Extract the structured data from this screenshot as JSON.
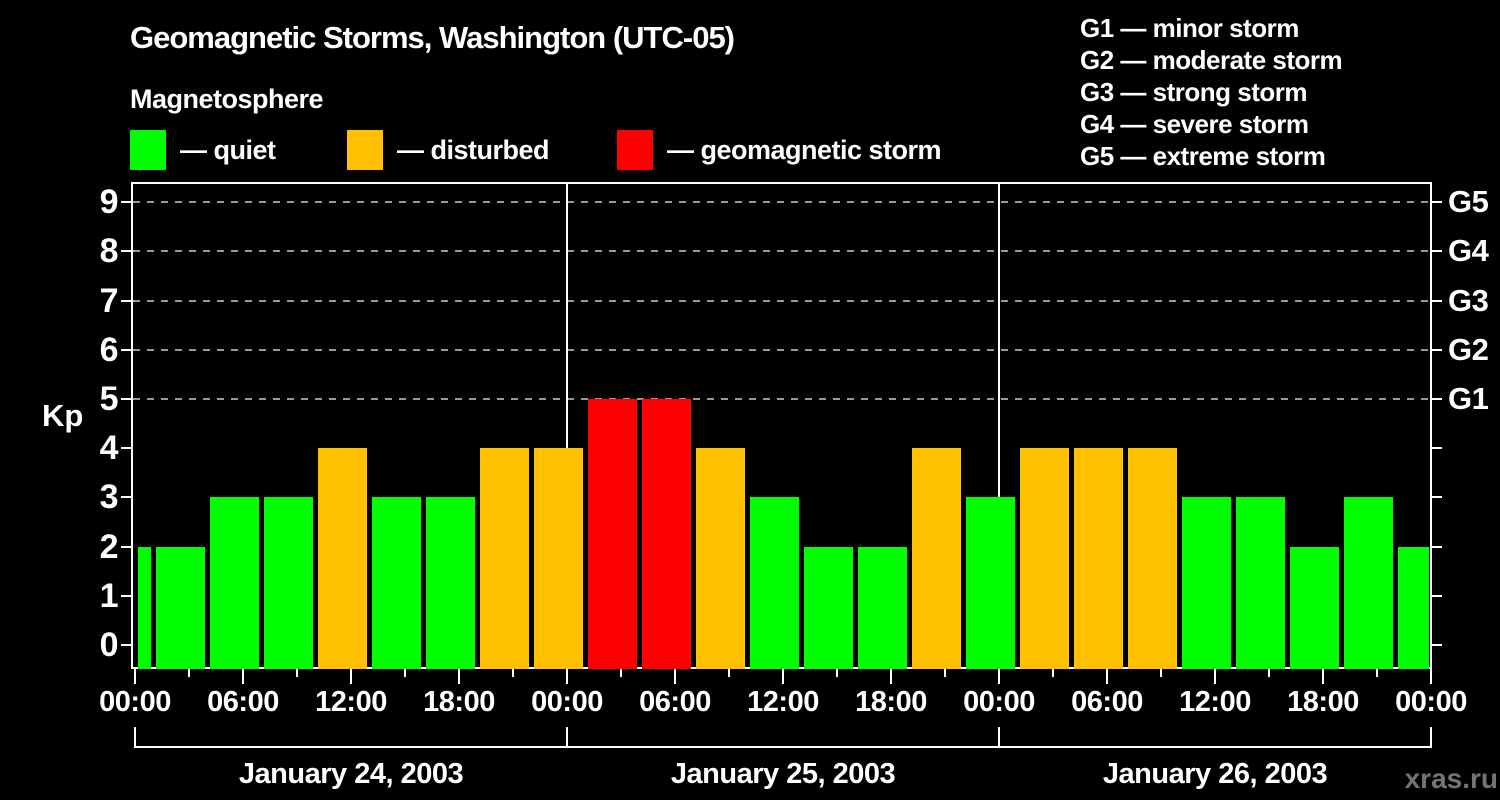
{
  "title": "Geomagnetic Storms, Washington (UTC-05)",
  "subtitle": "Magnetosphere",
  "status_legend": [
    {
      "key": "quiet",
      "label": "— quiet",
      "color": "#00ff00"
    },
    {
      "key": "disturbed",
      "label": "— disturbed",
      "color": "#ffc000"
    },
    {
      "key": "storm",
      "label": "— geomagnetic storm",
      "color": "#ff0000"
    }
  ],
  "g_scale_legend": [
    "G1 — minor storm",
    "G2 — moderate storm",
    "G3 — strong storm",
    "G4 — severe storm",
    "G5 — extreme storm"
  ],
  "watermark": "xras.ru",
  "chart_data": {
    "type": "bar",
    "title": "Geomagnetic Storms, Washington (UTC-05)",
    "ylabel": "Kp",
    "ylim": [
      0,
      9.4
    ],
    "y_ticks": [
      0,
      1,
      2,
      3,
      4,
      5,
      6,
      7,
      8,
      9
    ],
    "grid_levels_kp": [
      5,
      6,
      7,
      8,
      9
    ],
    "grid_style": "dashed-gray",
    "right_axis": [
      {
        "label": "G1",
        "kp": 5
      },
      {
        "label": "G2",
        "kp": 6
      },
      {
        "label": "G3",
        "kp": 7
      },
      {
        "label": "G4",
        "kp": 8
      },
      {
        "label": "G5",
        "kp": 9
      }
    ],
    "x_axis": {
      "hours_span": 72,
      "minor_tick_every_h": 3,
      "major_tick_every_h": 6,
      "major_labels": [
        "00:00",
        "06:00",
        "12:00",
        "18:00",
        "00:00",
        "06:00",
        "12:00",
        "18:00",
        "00:00",
        "06:00",
        "12:00",
        "18:00",
        "00:00"
      ]
    },
    "days": [
      {
        "label": "January 24, 2003",
        "start_h": 0,
        "end_h": 24,
        "kp_3h": [
          2,
          2,
          3,
          3,
          4,
          3,
          3,
          4
        ]
      },
      {
        "label": "January 25, 2003",
        "start_h": 24,
        "end_h": 48,
        "kp_3h": [
          4,
          5,
          5,
          4,
          3,
          2,
          2,
          4
        ]
      },
      {
        "label": "January 26, 2003",
        "start_h": 48,
        "end_h": 72,
        "kp_3h": [
          3,
          4,
          4,
          4,
          3,
          3,
          2,
          3
        ]
      }
    ],
    "bars": [
      {
        "start": 0,
        "end": 1,
        "kp": 2,
        "status": "quiet"
      },
      {
        "start": 1,
        "end": 4,
        "kp": 2,
        "status": "quiet"
      },
      {
        "start": 4,
        "end": 7,
        "kp": 3,
        "status": "quiet"
      },
      {
        "start": 7,
        "end": 10,
        "kp": 3,
        "status": "quiet"
      },
      {
        "start": 10,
        "end": 13,
        "kp": 4,
        "status": "disturbed"
      },
      {
        "start": 13,
        "end": 16,
        "kp": 3,
        "status": "quiet"
      },
      {
        "start": 16,
        "end": 19,
        "kp": 3,
        "status": "quiet"
      },
      {
        "start": 19,
        "end": 22,
        "kp": 4,
        "status": "disturbed"
      },
      {
        "start": 22,
        "end": 25,
        "kp": 4,
        "status": "disturbed"
      },
      {
        "start": 25,
        "end": 28,
        "kp": 5,
        "status": "storm"
      },
      {
        "start": 28,
        "end": 31,
        "kp": 5,
        "status": "storm"
      },
      {
        "start": 31,
        "end": 34,
        "kp": 4,
        "status": "disturbed"
      },
      {
        "start": 34,
        "end": 37,
        "kp": 3,
        "status": "quiet"
      },
      {
        "start": 37,
        "end": 40,
        "kp": 2,
        "status": "quiet"
      },
      {
        "start": 40,
        "end": 43,
        "kp": 2,
        "status": "quiet"
      },
      {
        "start": 43,
        "end": 46,
        "kp": 4,
        "status": "disturbed"
      },
      {
        "start": 46,
        "end": 49,
        "kp": 3,
        "status": "quiet"
      },
      {
        "start": 49,
        "end": 52,
        "kp": 4,
        "status": "disturbed"
      },
      {
        "start": 52,
        "end": 55,
        "kp": 4,
        "status": "disturbed"
      },
      {
        "start": 55,
        "end": 58,
        "kp": 4,
        "status": "disturbed"
      },
      {
        "start": 58,
        "end": 61,
        "kp": 3,
        "status": "quiet"
      },
      {
        "start": 61,
        "end": 64,
        "kp": 3,
        "status": "quiet"
      },
      {
        "start": 64,
        "end": 67,
        "kp": 2,
        "status": "quiet"
      },
      {
        "start": 67,
        "end": 70,
        "kp": 3,
        "status": "quiet"
      },
      {
        "start": 70,
        "end": 72,
        "kp": 2,
        "status": "quiet"
      }
    ],
    "status_colors": {
      "quiet": "#00ff00",
      "disturbed": "#ffc000",
      "storm": "#ff0000"
    }
  }
}
